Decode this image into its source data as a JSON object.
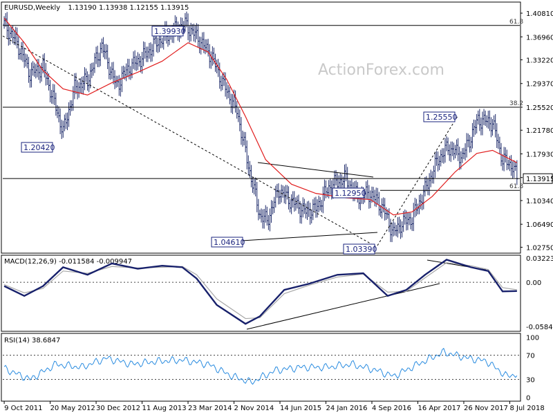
{
  "header": {
    "symbol": "EURUSD,Weekly",
    "ohlc": "1.13190 1.13938 1.12155 1.13915"
  },
  "watermark": "ActionForex.com",
  "colors": {
    "price": "#1d2a6a",
    "moving_average": "#e11d1d",
    "macd": "#17206b",
    "macd_signal": "#a8a8a8",
    "rsi": "#2a8ce0"
  },
  "chart_data": [
    {
      "type": "line",
      "pane": "price",
      "title": "EURUSD,Weekly",
      "subtitle": "1.13190 1.13938 1.12155 1.13915",
      "ylim": [
        1.019,
        1.425
      ],
      "yticks": [
        "1.40810",
        "1.36960",
        "1.33220",
        "1.29370",
        "1.25520",
        "1.21780",
        "1.17930",
        "1.14080",
        "1.10340",
        "1.06490",
        "1.02750"
      ],
      "xticks": [
        "9 Oct 2011",
        "20 May 2012",
        "30 Dec 2012",
        "11 Aug 2013",
        "23 Mar 2014",
        "2 Nov 2014",
        "14 Jun 2015",
        "24 Jan 2016",
        "4 Sep 2016",
        "16 Apr 2017",
        "26 Nov 2017",
        "8 Jul 2018"
      ],
      "series": [
        {
          "x": [
            "2011-10-09",
            "2011-12-11",
            "2012-02-12",
            "2012-04-15",
            "2012-06-17",
            "2012-07-22",
            "2012-09-16",
            "2012-11-18",
            "2013-01-27",
            "2013-04-07",
            "2013-06-09",
            "2013-08-11",
            "2013-10-20",
            "2013-12-22",
            "2014-03-09",
            "2014-05-04",
            "2014-07-13",
            "2014-09-14",
            "2014-11-16",
            "2015-01-11",
            "2015-03-08",
            "2015-04-12",
            "2015-06-07",
            "2015-08-16",
            "2015-10-18",
            "2015-12-06",
            "2016-02-07",
            "2016-04-24",
            "2016-06-26",
            "2016-08-28",
            "2016-10-30",
            "2016-12-18",
            "2017-01-22",
            "2017-03-19",
            "2017-05-21",
            "2017-07-23",
            "2017-09-10",
            "2017-11-19",
            "2018-02-04",
            "2018-04-15",
            "2018-06-03",
            "2018-07-22",
            "2018-08-12"
          ],
          "values": [
            1.39,
            1.36,
            1.31,
            1.32,
            1.255,
            1.215,
            1.285,
            1.3,
            1.355,
            1.29,
            1.32,
            1.335,
            1.36,
            1.375,
            1.39,
            1.37,
            1.34,
            1.29,
            1.25,
            1.16,
            1.08,
            1.07,
            1.12,
            1.1,
            1.085,
            1.09,
            1.125,
            1.14,
            1.11,
            1.115,
            1.09,
            1.05,
            1.065,
            1.075,
            1.12,
            1.17,
            1.19,
            1.175,
            1.235,
            1.23,
            1.17,
            1.16,
            1.139
          ]
        },
        {
          "name": "MA",
          "x": [
            "2011-10-09",
            "2012-01-15",
            "2012-04-15",
            "2012-07-22",
            "2012-11-18",
            "2013-03-17",
            "2013-07-21",
            "2013-11-17",
            "2014-03-23",
            "2014-06-29",
            "2014-09-28",
            "2014-12-28",
            "2015-04-05",
            "2015-08-09",
            "2015-12-06",
            "2016-04-24",
            "2016-08-28",
            "2016-12-18",
            "2017-03-19",
            "2017-06-25",
            "2017-10-15",
            "2018-01-28",
            "2018-04-15",
            "2018-08-12"
          ],
          "values": [
            1.4,
            1.36,
            1.315,
            1.285,
            1.275,
            1.295,
            1.312,
            1.33,
            1.36,
            1.345,
            1.3,
            1.24,
            1.17,
            1.13,
            1.115,
            1.108,
            1.105,
            1.08,
            1.085,
            1.11,
            1.15,
            1.18,
            1.185,
            1.165
          ]
        }
      ],
      "levels": [
        {
          "label": "61.8",
          "value": 1.3881
        },
        {
          "label": "38.2",
          "value": 1.2552
        },
        {
          "label": "61.8",
          "value": 1.12
        }
      ],
      "annotations": [
        "1.39930",
        "1.20420",
        "1.25550",
        "1.12950",
        "1.04610",
        "1.03390"
      ],
      "current_price": "1.13915"
    },
    {
      "type": "line",
      "pane": "macd",
      "title": "MACD(12,26,9) -0.011584 -0.009947",
      "ylim": [
        -0.064,
        0.035
      ],
      "yticks": [
        "0.032235",
        "0.00",
        "-0.058435"
      ],
      "series": [
        {
          "x": [
            "2011-10-09",
            "2012-01-15",
            "2012-04-15",
            "2012-07-22",
            "2012-11-18",
            "2013-03-17",
            "2013-07-21",
            "2013-11-17",
            "2014-02-23",
            "2014-05-04",
            "2014-08-10",
            "2014-12-28",
            "2015-03-08",
            "2015-07-05",
            "2015-11-01",
            "2016-03-20",
            "2016-07-24",
            "2016-11-20",
            "2017-02-19",
            "2017-05-21",
            "2017-09-03",
            "2017-12-31",
            "2018-03-25",
            "2018-06-03",
            "2018-08-12"
          ],
          "values": [
            -0.005,
            -0.018,
            -0.005,
            0.02,
            0.01,
            0.025,
            0.018,
            0.022,
            0.02,
            0.005,
            -0.03,
            -0.055,
            -0.045,
            -0.01,
            -0.002,
            0.01,
            0.012,
            -0.018,
            -0.01,
            0.01,
            0.03,
            0.02,
            0.015,
            -0.012,
            -0.0116
          ]
        },
        {
          "x": [
            "2011-10-09",
            "2012-01-15",
            "2012-04-15",
            "2012-07-22",
            "2012-11-18",
            "2013-03-17",
            "2013-07-21",
            "2013-11-17",
            "2014-02-23",
            "2014-05-04",
            "2014-08-10",
            "2014-12-28",
            "2015-03-08",
            "2015-07-05",
            "2015-11-01",
            "2016-03-20",
            "2016-07-24",
            "2016-11-20",
            "2017-02-19",
            "2017-05-21",
            "2017-09-03",
            "2017-12-31",
            "2018-03-25",
            "2018-06-03",
            "2018-08-12"
          ],
          "values": [
            -0.003,
            -0.014,
            -0.008,
            0.015,
            0.012,
            0.021,
            0.019,
            0.02,
            0.021,
            0.01,
            -0.022,
            -0.048,
            -0.047,
            -0.015,
            -0.004,
            0.007,
            0.011,
            -0.013,
            -0.012,
            0.006,
            0.026,
            0.022,
            0.017,
            -0.007,
            -0.0099
          ]
        }
      ]
    },
    {
      "type": "line",
      "pane": "rsi",
      "title": "RSI(14) 38.6847",
      "ylim": [
        -5,
        105
      ],
      "yticks": [
        "100",
        "70",
        "30",
        "0"
      ],
      "series": [
        {
          "x": [
            "2011-10-09",
            "2012-02-12",
            "2012-06-17",
            "2012-10-21",
            "2013-02-17",
            "2013-06-23",
            "2013-10-27",
            "2014-02-23",
            "2014-06-29",
            "2014-10-26",
            "2015-01-25",
            "2015-05-24",
            "2015-09-27",
            "2016-01-24",
            "2016-05-29",
            "2016-09-25",
            "2016-12-18",
            "2017-04-16",
            "2017-08-20",
            "2017-12-17",
            "2018-03-18",
            "2018-06-24",
            "2018-08-12"
          ],
          "values": [
            48,
            30,
            55,
            50,
            65,
            55,
            60,
            62,
            55,
            35,
            25,
            45,
            50,
            50,
            55,
            45,
            35,
            55,
            75,
            65,
            60,
            35,
            38.7
          ]
        }
      ],
      "levels": [
        70,
        30
      ]
    }
  ]
}
